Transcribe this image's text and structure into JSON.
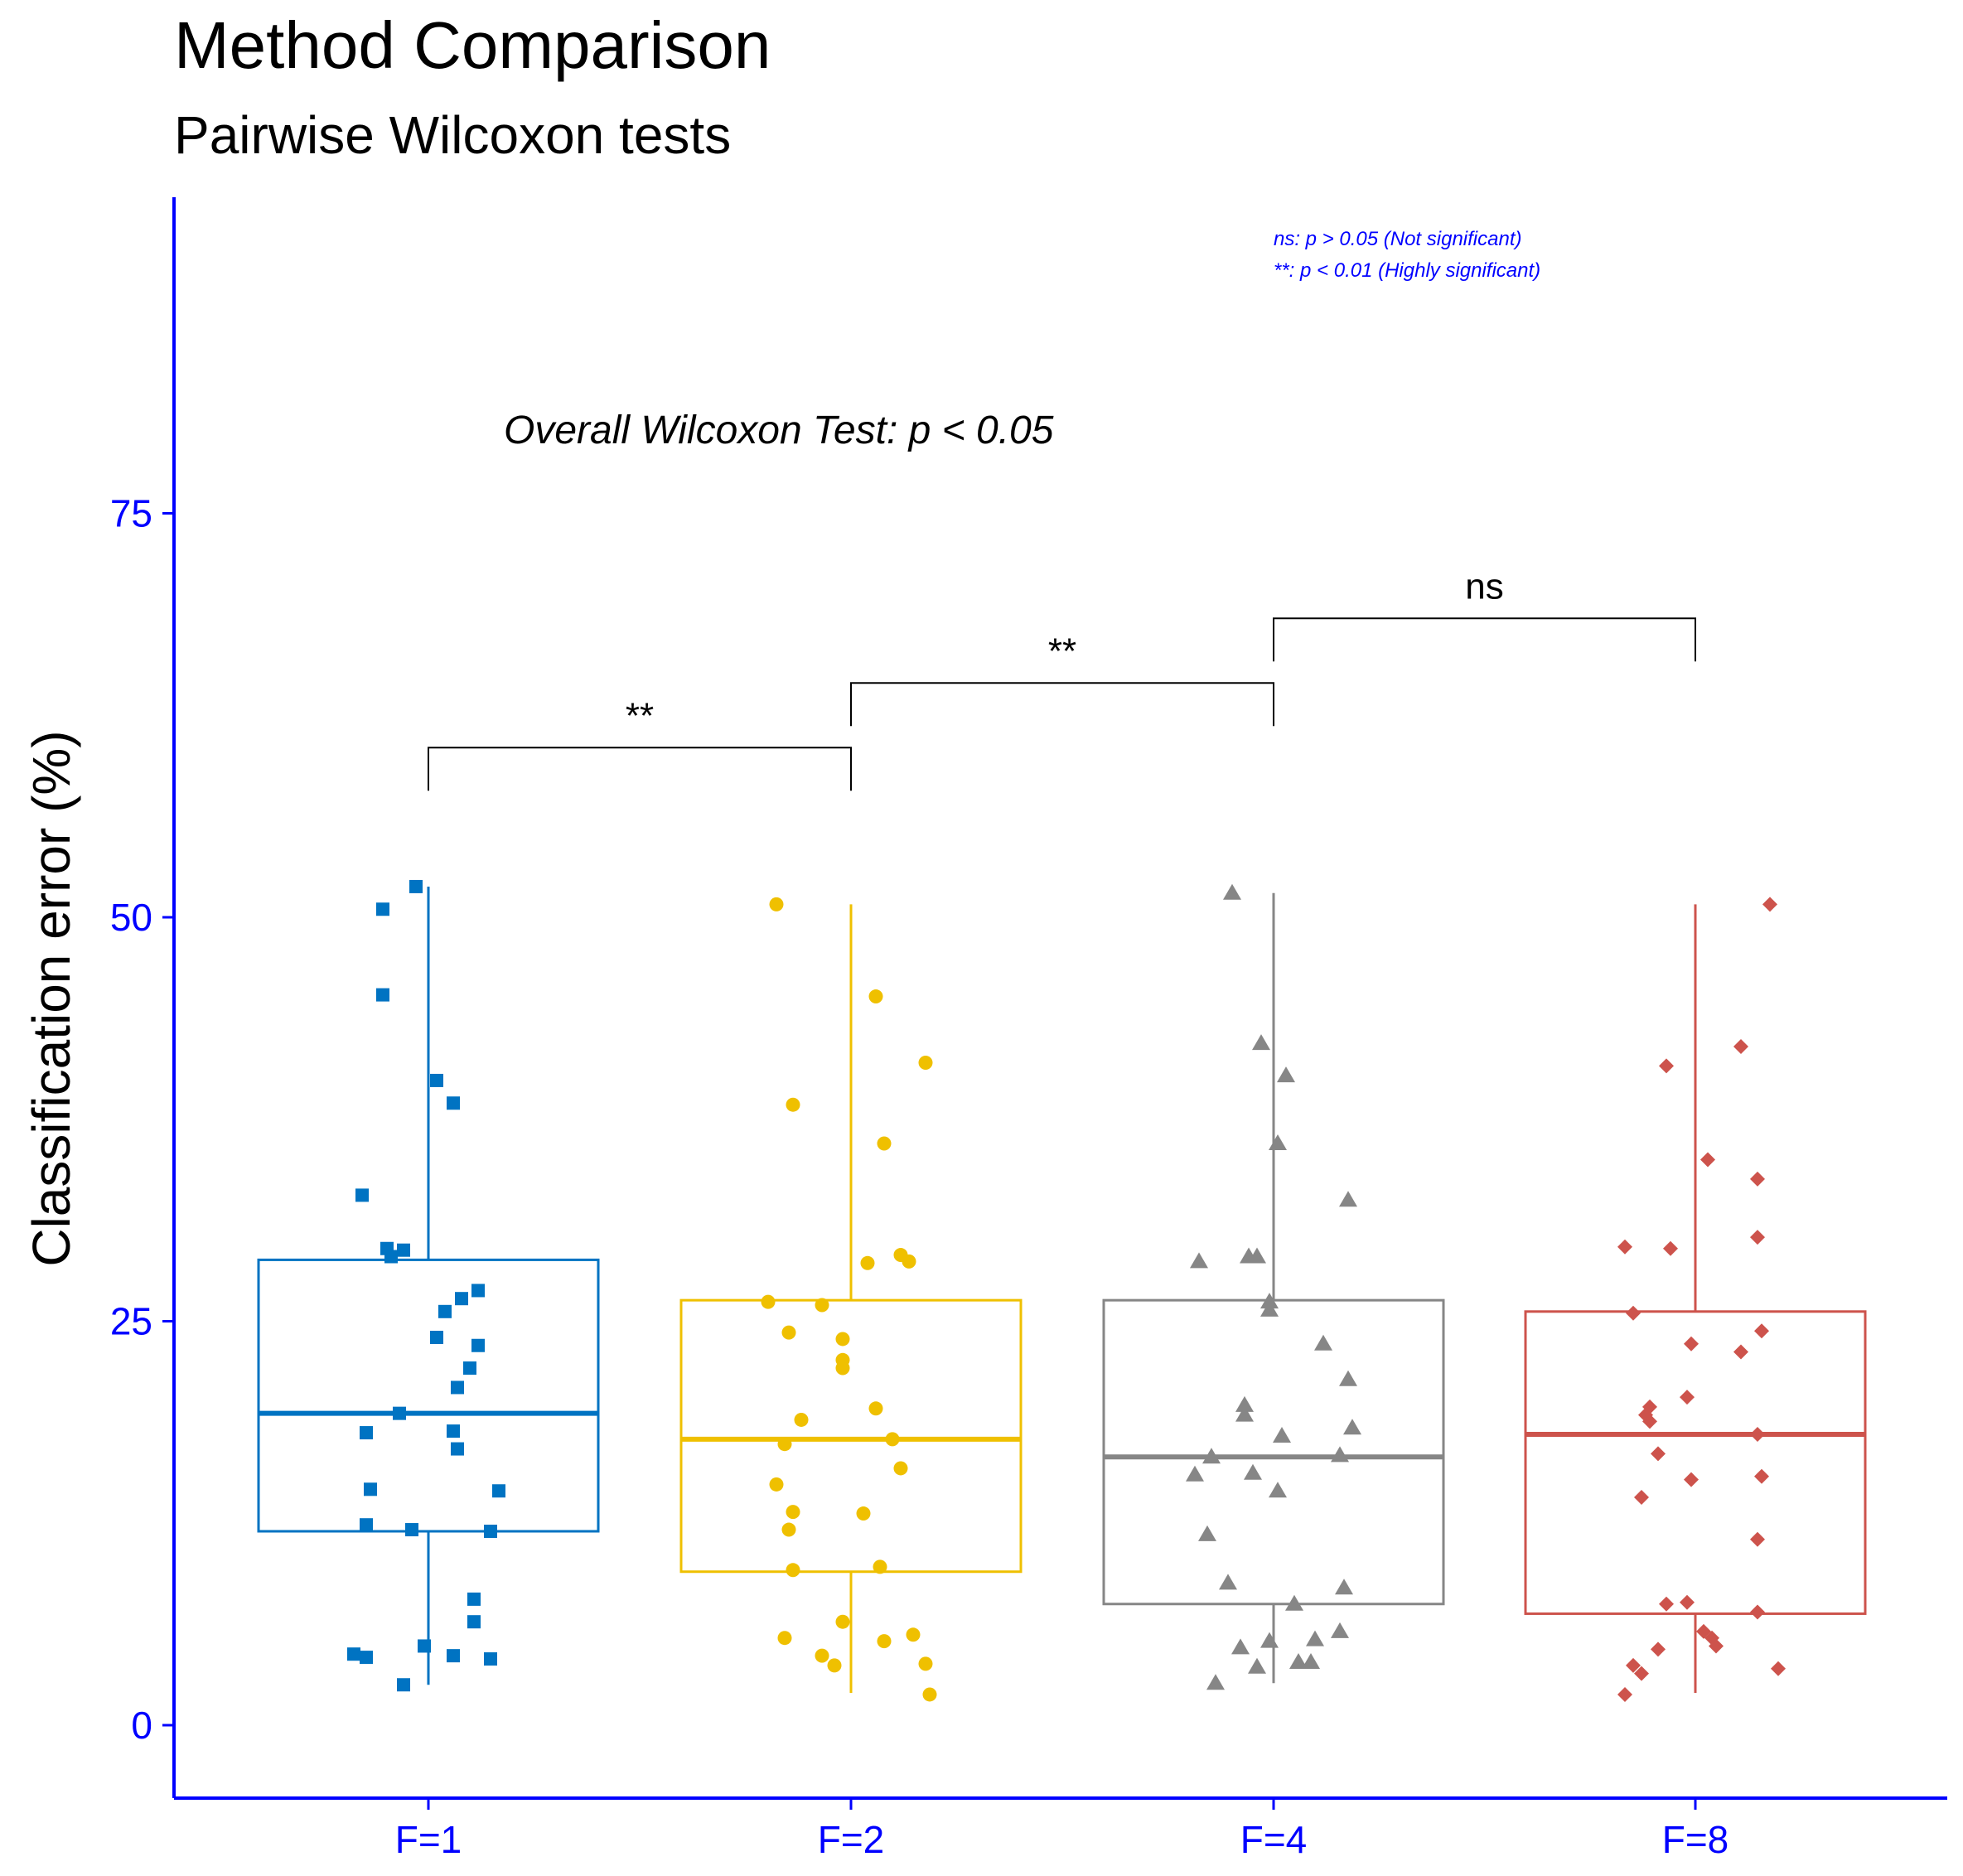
{
  "chart_data": {
    "type": "box",
    "title": "Method Comparison",
    "subtitle": "Pairwise Wilcoxon tests",
    "ylabel": "Classification error (%)",
    "xlabel": "",
    "ylim": [
      -4.5,
      95
    ],
    "yticks": [
      0,
      25,
      50,
      75
    ],
    "categories": [
      "F=1",
      "F=2",
      "F=4",
      "F=8"
    ],
    "annotation": "Overall Wilcoxon Test: p < 0.05",
    "legend_notes": [
      "ns: p > 0.05 (Not significant)",
      "**: p < 0.01 (Highly significant)"
    ],
    "comparisons": [
      {
        "from": "F=1",
        "to": "F=2",
        "label": "**",
        "y": 60.5
      },
      {
        "from": "F=2",
        "to": "F=4",
        "label": "**",
        "y": 64.5
      },
      {
        "from": "F=4",
        "to": "F=8",
        "label": "ns",
        "y": 68.5
      }
    ],
    "groups": [
      {
        "name": "F=1",
        "color": "#0073C2",
        "marker": "square",
        "box": {
          "q1": 12.0,
          "median": 19.3,
          "q3": 28.8,
          "whisker_low": 2.5,
          "whisker_high": 51.9
        },
        "points": [
          [
            -0.03,
            51.9
          ],
          [
            -0.11,
            50.5
          ],
          [
            -0.11,
            45.2
          ],
          [
            0.02,
            39.9
          ],
          [
            0.06,
            38.5
          ],
          [
            -0.16,
            32.8
          ],
          [
            -0.1,
            29.5
          ],
          [
            -0.06,
            29.4
          ],
          [
            -0.09,
            29.0
          ],
          [
            0.12,
            26.9
          ],
          [
            0.08,
            26.4
          ],
          [
            0.04,
            25.6
          ],
          [
            0.12,
            23.5
          ],
          [
            0.02,
            24.0
          ],
          [
            0.1,
            22.1
          ],
          [
            0.07,
            20.9
          ],
          [
            -0.07,
            19.3
          ],
          [
            0.06,
            18.2
          ],
          [
            -0.15,
            18.1
          ],
          [
            0.07,
            17.1
          ],
          [
            -0.14,
            14.6
          ],
          [
            0.17,
            14.5
          ],
          [
            -0.15,
            12.4
          ],
          [
            -0.04,
            12.1
          ],
          [
            0.15,
            12.0
          ],
          [
            0.11,
            7.8
          ],
          [
            0.11,
            6.4
          ],
          [
            -0.01,
            4.9
          ],
          [
            -0.18,
            4.4
          ],
          [
            -0.15,
            4.2
          ],
          [
            0.06,
            4.3
          ],
          [
            0.15,
            4.1
          ],
          [
            -0.06,
            2.5
          ]
        ]
      },
      {
        "name": "F=2",
        "color": "#EFC000",
        "marker": "circle",
        "box": {
          "q1": 9.5,
          "median": 17.7,
          "q3": 26.3,
          "whisker_low": 2.0,
          "whisker_high": 50.8
        },
        "points": [
          [
            -0.18,
            50.8
          ],
          [
            0.06,
            45.1
          ],
          [
            0.18,
            41.0
          ],
          [
            -0.14,
            38.4
          ],
          [
            0.08,
            36.0
          ],
          [
            0.12,
            29.1
          ],
          [
            0.04,
            28.6
          ],
          [
            0.14,
            28.7
          ],
          [
            -0.2,
            26.2
          ],
          [
            -0.07,
            26.0
          ],
          [
            -0.15,
            24.3
          ],
          [
            -0.02,
            23.9
          ],
          [
            -0.02,
            22.6
          ],
          [
            -0.02,
            22.1
          ],
          [
            0.06,
            19.6
          ],
          [
            -0.12,
            18.9
          ],
          [
            0.1,
            17.7
          ],
          [
            -0.16,
            17.4
          ],
          [
            0.12,
            15.9
          ],
          [
            -0.18,
            14.9
          ],
          [
            -0.14,
            13.2
          ],
          [
            0.03,
            13.1
          ],
          [
            -0.15,
            12.1
          ],
          [
            0.07,
            9.8
          ],
          [
            -0.14,
            9.6
          ],
          [
            -0.02,
            6.4
          ],
          [
            0.08,
            5.2
          ],
          [
            0.15,
            5.6
          ],
          [
            -0.16,
            5.4
          ],
          [
            -0.07,
            4.3
          ],
          [
            -0.04,
            3.7
          ],
          [
            0.18,
            3.8
          ],
          [
            0.19,
            1.9
          ]
        ]
      },
      {
        "name": "F=4",
        "color": "#868686",
        "marker": "triangle",
        "box": {
          "q1": 7.5,
          "median": 16.6,
          "q3": 26.3,
          "whisker_low": 2.6,
          "whisker_high": 51.5
        },
        "points": [
          [
            -0.1,
            51.5
          ],
          [
            -0.03,
            42.2
          ],
          [
            0.03,
            40.2
          ],
          [
            0.01,
            36.0
          ],
          [
            0.18,
            32.5
          ],
          [
            -0.18,
            28.7
          ],
          [
            -0.06,
            29.0
          ],
          [
            -0.04,
            29.0
          ],
          [
            -0.01,
            26.2
          ],
          [
            -0.01,
            25.7
          ],
          [
            0.12,
            23.6
          ],
          [
            0.18,
            21.4
          ],
          [
            -0.07,
            19.8
          ],
          [
            -0.07,
            19.2
          ],
          [
            0.19,
            18.4
          ],
          [
            0.02,
            17.9
          ],
          [
            0.16,
            16.7
          ],
          [
            -0.15,
            16.6
          ],
          [
            -0.19,
            15.5
          ],
          [
            -0.05,
            15.6
          ],
          [
            0.01,
            14.5
          ],
          [
            -0.16,
            11.8
          ],
          [
            -0.11,
            8.8
          ],
          [
            0.17,
            8.5
          ],
          [
            0.05,
            7.5
          ],
          [
            0.16,
            5.8
          ],
          [
            -0.08,
            4.8
          ],
          [
            -0.01,
            5.2
          ],
          [
            0.1,
            5.3
          ],
          [
            -0.04,
            3.6
          ],
          [
            0.06,
            3.9
          ],
          [
            0.09,
            3.9
          ],
          [
            -0.14,
            2.6
          ]
        ]
      },
      {
        "name": "F=8",
        "color": "#CD534C",
        "marker": "diamond",
        "box": {
          "q1": 6.9,
          "median": 18.0,
          "q3": 25.6,
          "whisker_low": 2.0,
          "whisker_high": 50.8
        },
        "points": [
          [
            0.18,
            50.8
          ],
          [
            0.11,
            42.0
          ],
          [
            -0.07,
            40.8
          ],
          [
            0.03,
            35.0
          ],
          [
            0.15,
            33.8
          ],
          [
            0.15,
            30.2
          ],
          [
            -0.17,
            29.6
          ],
          [
            -0.06,
            29.5
          ],
          [
            -0.15,
            25.5
          ],
          [
            0.16,
            24.4
          ],
          [
            -0.01,
            23.6
          ],
          [
            0.11,
            23.1
          ],
          [
            -0.02,
            20.3
          ],
          [
            -0.11,
            19.7
          ],
          [
            -0.12,
            19.2
          ],
          [
            -0.11,
            18.8
          ],
          [
            0.15,
            18.0
          ],
          [
            -0.09,
            16.8
          ],
          [
            0.16,
            15.4
          ],
          [
            -0.01,
            15.2
          ],
          [
            -0.13,
            14.1
          ],
          [
            0.15,
            11.5
          ],
          [
            -0.02,
            7.6
          ],
          [
            -0.07,
            7.5
          ],
          [
            0.15,
            7.0
          ],
          [
            0.02,
            5.8
          ],
          [
            0.04,
            5.4
          ],
          [
            0.05,
            4.9
          ],
          [
            -0.09,
            4.7
          ],
          [
            0.2,
            3.5
          ],
          [
            -0.15,
            3.7
          ],
          [
            -0.13,
            3.2
          ],
          [
            -0.17,
            1.9
          ]
        ]
      }
    ]
  }
}
